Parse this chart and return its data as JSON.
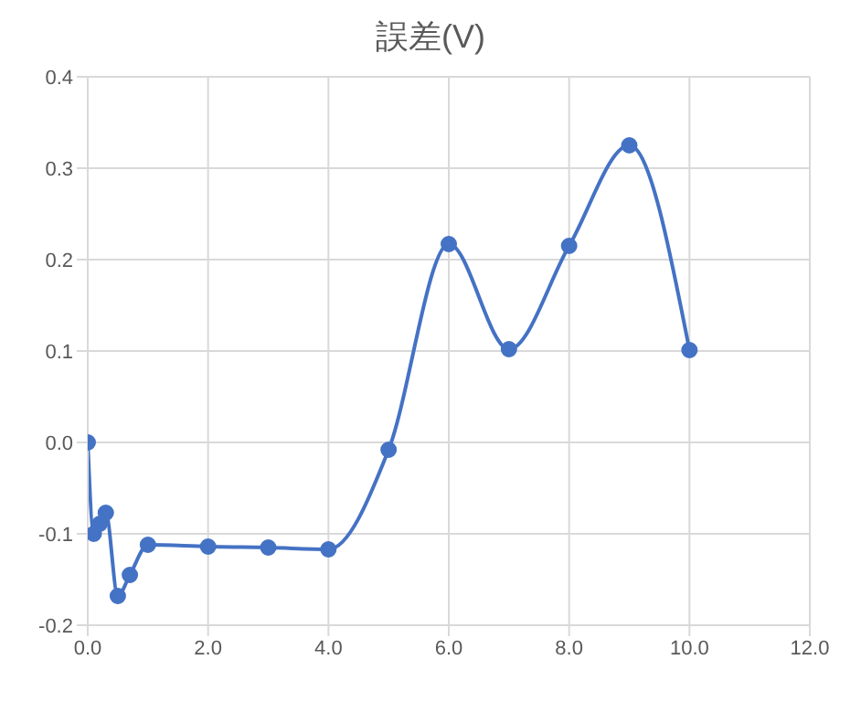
{
  "chart_data": {
    "type": "line",
    "title": "誤差(V)",
    "x": [
      0,
      0.1,
      0.2,
      0.3,
      0.5,
      0.7,
      1,
      2,
      3,
      4,
      5,
      6,
      7,
      8,
      9,
      10
    ],
    "series": [
      {
        "color": "#4472c4",
        "values": [
          0,
          -0.1,
          -0.089,
          -0.077,
          -0.168,
          -0.145,
          -0.112,
          -0.114,
          -0.115,
          -0.117,
          -0.008,
          0.217,
          0.102,
          0.215,
          0.325,
          0.101
        ]
      }
    ],
    "xlim": [
      0,
      12
    ],
    "xticks": [
      {
        "value": 0,
        "label": "0.0"
      },
      {
        "value": 2,
        "label": "2.0"
      },
      {
        "value": 4,
        "label": "4.0"
      },
      {
        "value": 6,
        "label": "6.0"
      },
      {
        "value": 8,
        "label": "8.0"
      },
      {
        "value": 10,
        "label": "10.0"
      },
      {
        "value": 12,
        "label": "12.0"
      }
    ],
    "ylim": [
      -0.2,
      0.4
    ],
    "yticks": [
      {
        "value": -0.2,
        "label": "-0.2"
      },
      {
        "value": -0.1,
        "label": "-0.1"
      },
      {
        "value": 0,
        "label": "0.0"
      },
      {
        "value": 0.1,
        "label": "0.1"
      },
      {
        "value": 0.2,
        "label": "0.2"
      },
      {
        "value": 0.3,
        "label": "0.3"
      },
      {
        "value": 0.4,
        "label": "0.4"
      }
    ],
    "grid": true,
    "marker": "circle",
    "line_style": "solid"
  }
}
